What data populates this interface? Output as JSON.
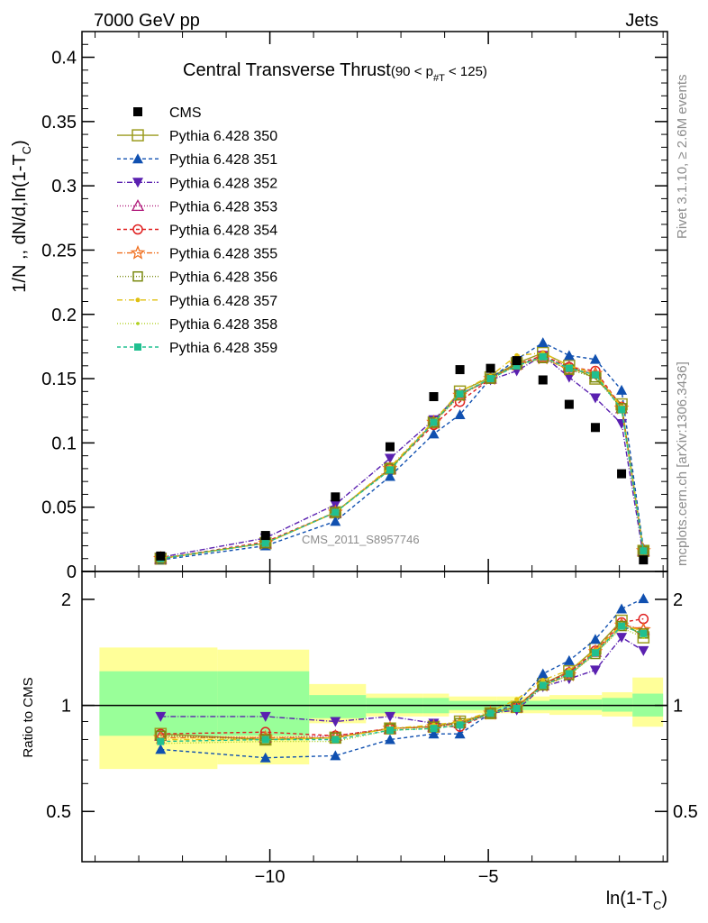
{
  "header": {
    "left": "7000 GeV pp",
    "right": "Jets"
  },
  "side_text": {
    "top": "Rivet 3.1.10, ≥ 2.6M events",
    "bottom": "mcplots.cern.ch [arXiv:1306.3436]"
  },
  "analysis_label": "CMS_2011_S8957746",
  "chart_data": {
    "type": "scatter",
    "title": "Central Transverse Thrust",
    "title_suffix": "(90 < p",
    "title_sub": "#T",
    "title_end": " < 125)",
    "ylabel": "1/N ,, dN/d,ln(1-T",
    "ylabel_sub": "C",
    "ylabel_end": ")",
    "xlabel": "ln(1-T",
    "xlabel_sub": "C",
    "xlabel_end": ")",
    "ratio_ylabel": "Ratio to CMS",
    "xlim": [
      -14.3,
      -0.9
    ],
    "ylim": [
      0,
      0.42
    ],
    "ratio_ylim": [
      0.36,
      2.4
    ],
    "x_ticks": [
      -10,
      -5
    ],
    "x_tick_labels": [
      "−10",
      "−5"
    ],
    "y_ticks": [
      "0",
      "0.05",
      "0.1",
      "0.15",
      "0.2",
      "0.25",
      "0.3",
      "0.35",
      "0.4"
    ],
    "ratio_ticks": [
      "0.5",
      "1",
      "2"
    ],
    "x": [
      -12.5,
      -10.1,
      -8.5,
      -7.25,
      -6.25,
      -5.65,
      -4.95,
      -4.35,
      -3.75,
      -3.15,
      -2.55,
      -1.95,
      -1.45
    ],
    "bands": [
      {
        "x0": -13.9,
        "x1": -11.2,
        "inner": [
          0.82,
          1.25
        ],
        "outer": [
          0.66,
          1.46
        ]
      },
      {
        "x0": -11.2,
        "x1": -9.1,
        "inner": [
          0.82,
          1.25
        ],
        "outer": [
          0.68,
          1.44
        ]
      },
      {
        "x0": -9.1,
        "x1": -7.8,
        "inner": [
          0.92,
          1.07
        ],
        "outer": [
          0.89,
          1.15
        ]
      },
      {
        "x0": -7.8,
        "x1": -6.5,
        "inner": [
          0.95,
          1.05
        ],
        "outer": [
          0.93,
          1.08
        ]
      },
      {
        "x0": -6.5,
        "x1": -5.9,
        "inner": [
          0.95,
          1.05
        ],
        "outer": [
          0.93,
          1.08
        ]
      },
      {
        "x0": -5.9,
        "x1": -4.8,
        "inner": [
          0.97,
          1.03
        ],
        "outer": [
          0.95,
          1.06
        ]
      },
      {
        "x0": -4.8,
        "x1": -3.6,
        "inner": [
          0.97,
          1.03
        ],
        "outer": [
          0.95,
          1.06
        ]
      },
      {
        "x0": -3.6,
        "x1": -2.4,
        "inner": [
          0.97,
          1.04
        ],
        "outer": [
          0.94,
          1.07
        ]
      },
      {
        "x0": -2.4,
        "x1": -1.7,
        "inner": [
          0.96,
          1.05
        ],
        "outer": [
          0.93,
          1.09
        ]
      },
      {
        "x0": -1.7,
        "x1": -1.0,
        "inner": [
          0.93,
          1.08
        ],
        "outer": [
          0.87,
          1.2
        ]
      }
    ],
    "series": [
      {
        "name": "CMS",
        "color": "#000000",
        "marker": "fsquare",
        "dash": "none",
        "line": false,
        "values": [
          0.012,
          0.028,
          0.058,
          0.097,
          0.136,
          0.157,
          0.158,
          0.164,
          0.149,
          0.13,
          0.112,
          0.076,
          0.009
        ]
      },
      {
        "name": "Pythia 6.428 350",
        "color": "#9b9b1e",
        "marker": "osquare",
        "dash": "none",
        "line": true,
        "values": [
          0.01,
          0.022,
          0.046,
          0.08,
          0.116,
          0.14,
          0.151,
          0.162,
          0.17,
          0.16,
          0.15,
          0.13,
          0.016
        ],
        "ratio": [
          0.83,
          0.8,
          0.81,
          0.86,
          0.87,
          0.9,
          0.95,
          0.99,
          1.15,
          1.25,
          1.45,
          1.74,
          1.56
        ]
      },
      {
        "name": "Pythia 6.428 351",
        "color": "#1050b0",
        "marker": "ftri",
        "dash": "4,3",
        "line": true,
        "values": [
          0.009,
          0.02,
          0.039,
          0.074,
          0.107,
          0.122,
          0.15,
          0.165,
          0.178,
          0.168,
          0.165,
          0.141,
          0.018
        ],
        "ratio": [
          0.75,
          0.71,
          0.72,
          0.8,
          0.83,
          0.83,
          0.95,
          1.01,
          1.23,
          1.34,
          1.54,
          1.88,
          2.01
        ]
      },
      {
        "name": "Pythia 6.428 352",
        "color": "#5a20b0",
        "marker": "fitri",
        "dash": "6,2,1,2",
        "line": true,
        "values": [
          0.011,
          0.026,
          0.052,
          0.088,
          0.118,
          0.138,
          0.149,
          0.156,
          0.168,
          0.151,
          0.135,
          0.115,
          0.012
        ],
        "ratio": [
          0.93,
          0.93,
          0.9,
          0.93,
          0.89,
          0.88,
          0.95,
          0.97,
          1.13,
          1.19,
          1.26,
          1.56,
          1.43
        ]
      },
      {
        "name": "Pythia 6.428 353",
        "color": "#b01a7a",
        "marker": "otri",
        "dash": "1,2",
        "line": true,
        "values": [
          0.01,
          0.022,
          0.046,
          0.08,
          0.116,
          0.137,
          0.15,
          0.161,
          0.167,
          0.159,
          0.154,
          0.127,
          0.016
        ],
        "ratio": [
          0.82,
          0.81,
          0.82,
          0.86,
          0.87,
          0.89,
          0.95,
          0.99,
          1.14,
          1.24,
          1.42,
          1.7,
          1.64
        ]
      },
      {
        "name": "Pythia 6.428 354",
        "color": "#e02020",
        "marker": "ocircle",
        "dash": "4,3",
        "line": true,
        "values": [
          0.01,
          0.023,
          0.046,
          0.08,
          0.114,
          0.132,
          0.15,
          0.161,
          0.168,
          0.159,
          0.156,
          0.128,
          0.016
        ],
        "ratio": [
          0.83,
          0.84,
          0.82,
          0.86,
          0.87,
          0.87,
          0.95,
          0.99,
          1.15,
          1.24,
          1.43,
          1.72,
          1.76
        ]
      },
      {
        "name": "Pythia 6.428 355",
        "color": "#f07020",
        "marker": "ostar",
        "dash": "6,2,1,2",
        "line": true,
        "values": [
          0.01,
          0.022,
          0.046,
          0.08,
          0.116,
          0.137,
          0.15,
          0.161,
          0.166,
          0.157,
          0.154,
          0.127,
          0.016
        ],
        "ratio": [
          0.81,
          0.81,
          0.81,
          0.86,
          0.87,
          0.89,
          0.95,
          0.99,
          1.14,
          1.22,
          1.42,
          1.69,
          1.64
        ]
      },
      {
        "name": "Pythia 6.428 356",
        "color": "#7a8a10",
        "marker": "osquare_s",
        "dash": "1,2",
        "line": true,
        "values": [
          0.01,
          0.022,
          0.046,
          0.08,
          0.116,
          0.137,
          0.15,
          0.161,
          0.166,
          0.157,
          0.151,
          0.127,
          0.016
        ],
        "ratio": [
          0.82,
          0.8,
          0.81,
          0.86,
          0.87,
          0.89,
          0.95,
          0.99,
          1.14,
          1.22,
          1.4,
          1.68,
          1.6
        ]
      },
      {
        "name": "Pythia 6.428 357",
        "color": "#e0c010",
        "marker": "fdot",
        "dash": "6,3,1,3",
        "line": true,
        "values": [
          0.01,
          0.022,
          0.046,
          0.081,
          0.117,
          0.14,
          0.152,
          0.168,
          0.17,
          0.16,
          0.154,
          0.128,
          0.016
        ],
        "ratio": [
          0.8,
          0.8,
          0.81,
          0.86,
          0.88,
          0.9,
          0.96,
          1.04,
          1.18,
          1.26,
          1.43,
          1.7,
          1.62
        ]
      },
      {
        "name": "Pythia 6.428 358",
        "color": "#b0d020",
        "marker": "fdot_s",
        "dash": "1,2",
        "line": true,
        "values": [
          0.01,
          0.022,
          0.046,
          0.079,
          0.116,
          0.138,
          0.15,
          0.16,
          0.166,
          0.157,
          0.153,
          0.126,
          0.016
        ],
        "ratio": [
          0.78,
          0.79,
          0.79,
          0.85,
          0.86,
          0.88,
          0.95,
          0.98,
          1.13,
          1.22,
          1.4,
          1.66,
          1.56
        ]
      },
      {
        "name": "Pythia 6.428 359",
        "color": "#20c090",
        "marker": "fsquare_s",
        "dash": "4,3",
        "line": true,
        "values": [
          0.01,
          0.022,
          0.046,
          0.079,
          0.116,
          0.138,
          0.15,
          0.16,
          0.167,
          0.158,
          0.153,
          0.126,
          0.016
        ],
        "ratio": [
          0.79,
          0.8,
          0.8,
          0.85,
          0.86,
          0.88,
          0.95,
          0.98,
          1.14,
          1.23,
          1.41,
          1.68,
          1.6
        ]
      }
    ]
  }
}
